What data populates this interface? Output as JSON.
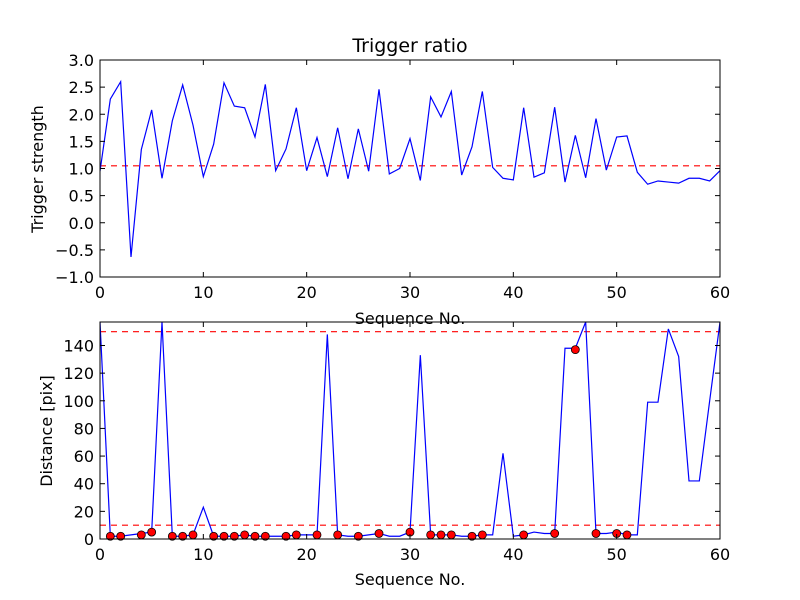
{
  "chart_data": [
    {
      "type": "line",
      "title": "Trigger ratio",
      "xlabel": "Sequence No.",
      "ylabel": "Trigger strength",
      "xlim": [
        0,
        60
      ],
      "ylim": [
        -1.0,
        3.0
      ],
      "xticks": [
        "0",
        "10",
        "20",
        "30",
        "40",
        "50",
        "60"
      ],
      "yticks": [
        "−1.0",
        "−0.5",
        "0.0",
        "0.5",
        "1.0",
        "1.5",
        "2.0",
        "2.5",
        "3.0"
      ],
      "line_color": "#0000ff",
      "threshold": {
        "value": 1.05,
        "color": "#ff0000",
        "style": "dashed"
      },
      "series": [
        {
          "x": [
            0,
            1,
            2,
            3,
            4,
            5,
            6,
            7,
            8,
            9,
            10,
            11,
            12,
            13,
            14,
            15,
            16,
            17,
            18,
            19,
            20,
            21,
            22,
            23,
            24,
            25,
            26,
            27,
            28,
            29,
            30,
            31,
            32,
            33,
            34,
            35,
            36,
            37,
            38,
            39,
            40,
            41,
            42,
            43,
            44,
            45,
            46,
            47,
            48,
            49,
            50,
            51,
            52,
            53,
            54,
            55,
            56,
            57,
            58,
            59,
            60
          ],
          "y": [
            0.95,
            2.28,
            2.6,
            -0.63,
            1.35,
            2.08,
            0.82,
            1.88,
            2.54,
            1.8,
            0.85,
            1.45,
            2.58,
            2.15,
            2.12,
            1.58,
            2.55,
            0.96,
            1.36,
            2.12,
            0.96,
            1.57,
            0.85,
            1.75,
            0.81,
            1.73,
            0.95,
            2.46,
            0.9,
            1.0,
            1.55,
            0.78,
            2.32,
            1.95,
            2.42,
            0.88,
            1.4,
            2.42,
            1.02,
            0.82,
            0.79,
            2.12,
            0.84,
            0.92,
            2.13,
            0.75,
            1.61,
            0.83,
            1.92,
            0.97,
            1.58,
            1.6,
            0.93,
            0.71,
            0.77,
            0.75,
            0.73,
            0.82,
            0.82,
            0.77,
            0.96
          ]
        }
      ]
    },
    {
      "type": "line",
      "title": "",
      "xlabel": "Sequence No.",
      "ylabel": "Distance [pix]",
      "xlim": [
        0,
        60
      ],
      "ylim": [
        0,
        157
      ],
      "xticks": [
        "0",
        "10",
        "20",
        "30",
        "40",
        "50",
        "60"
      ],
      "yticks": [
        "0",
        "20",
        "40",
        "60",
        "80",
        "100",
        "120",
        "140"
      ],
      "line_color": "#0000ff",
      "marker_color": "#ff0000",
      "thresholds": [
        {
          "value": 150,
          "color": "#ff0000",
          "style": "dashed"
        },
        {
          "value": 10,
          "color": "#ff0000",
          "style": "dashed"
        }
      ],
      "series": [
        {
          "x": [
            0,
            1,
            2,
            3,
            4,
            5,
            6,
            7,
            8,
            9,
            10,
            11,
            12,
            13,
            14,
            15,
            16,
            17,
            18,
            19,
            20,
            21,
            22,
            23,
            24,
            25,
            26,
            27,
            28,
            29,
            30,
            31,
            32,
            33,
            34,
            35,
            36,
            37,
            38,
            39,
            40,
            41,
            42,
            43,
            44,
            45,
            46,
            47,
            48,
            49,
            50,
            51,
            52,
            53,
            54,
            55,
            56,
            57,
            58,
            59,
            60
          ],
          "y": [
            157,
            2,
            2,
            3,
            4,
            5,
            157,
            2,
            2,
            3,
            23,
            2,
            2,
            2,
            3,
            2,
            2,
            2,
            2,
            3,
            3,
            3,
            148,
            3,
            2,
            2,
            3,
            4,
            2,
            2,
            5,
            133,
            3,
            3,
            3,
            2,
            2,
            3,
            3,
            62,
            2,
            3,
            5,
            4,
            4,
            138,
            138,
            157,
            4,
            4,
            5,
            3,
            3,
            99,
            99,
            152,
            132,
            42,
            42,
            100,
            157
          ]
        },
        {
          "name": "markers",
          "x": [
            1,
            2,
            4,
            5,
            7,
            8,
            9,
            11,
            12,
            13,
            14,
            15,
            16,
            18,
            19,
            21,
            23,
            25,
            27,
            30,
            32,
            33,
            34,
            36,
            37,
            41,
            44,
            46,
            48,
            50,
            51
          ],
          "y": [
            2,
            2,
            3,
            5,
            2,
            2,
            3,
            2,
            2,
            2,
            3,
            2,
            2,
            2,
            3,
            3,
            3,
            2,
            4,
            5,
            3,
            3,
            3,
            2,
            3,
            3,
            4,
            137,
            4,
            4,
            3
          ]
        }
      ]
    }
  ]
}
